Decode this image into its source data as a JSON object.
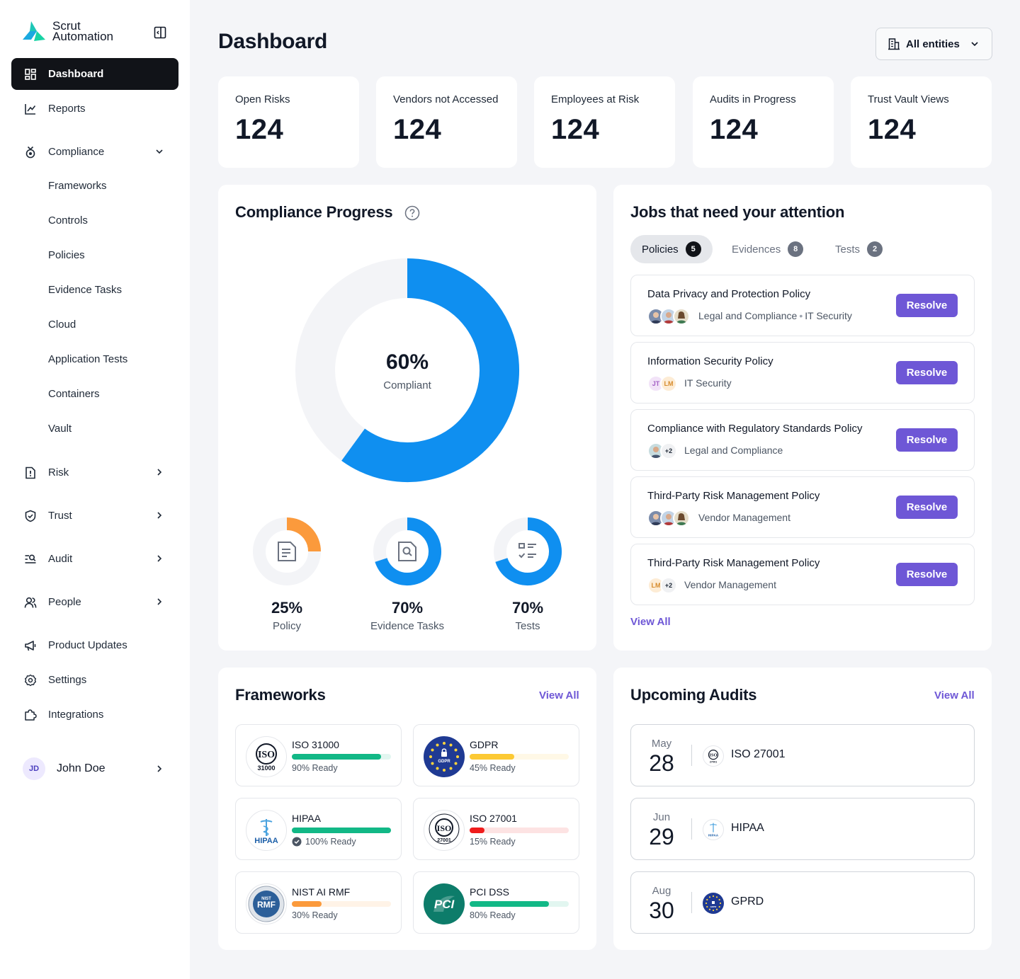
{
  "brand": {
    "line1": "Scrut",
    "line2": "Automation"
  },
  "sidebar": {
    "items": [
      {
        "label": "Dashboard"
      },
      {
        "label": "Reports"
      },
      {
        "label": "Compliance"
      },
      {
        "label": "Risk"
      },
      {
        "label": "Trust"
      },
      {
        "label": "Audit"
      },
      {
        "label": "People"
      },
      {
        "label": "Product Updates"
      },
      {
        "label": "Settings"
      },
      {
        "label": "Integrations"
      }
    ],
    "compliance_sub": [
      "Frameworks",
      "Controls",
      "Policies",
      "Evidence Tasks",
      "Cloud",
      "Application Tests",
      "Containers",
      "Vault"
    ],
    "user": {
      "initials": "JD",
      "name": "John Doe"
    }
  },
  "header": {
    "title": "Dashboard",
    "entities": "All entities"
  },
  "stats": [
    {
      "label": "Open Risks",
      "value": "124"
    },
    {
      "label": "Vendors not Accessed",
      "value": "124"
    },
    {
      "label": "Employees at Risk",
      "value": "124"
    },
    {
      "label": "Audits in Progress",
      "value": "124"
    },
    {
      "label": "Trust Vault Views",
      "value": "124"
    }
  ],
  "compliance": {
    "title": "Compliance Progress",
    "overall": {
      "value": "60%",
      "label": "Compliant",
      "fraction": 0.6
    },
    "breakdown": [
      {
        "value": "25%",
        "label": "Policy",
        "fraction": 0.25,
        "color": "#fb9a3c"
      },
      {
        "value": "70%",
        "label": "Evidence Tasks",
        "fraction": 0.7,
        "color": "#0f8ff0"
      },
      {
        "value": "70%",
        "label": "Tests",
        "fraction": 0.7,
        "color": "#0f8ff0"
      }
    ],
    "accent": "#0f8ff0"
  },
  "jobs": {
    "title": "Jobs that need your attention",
    "tabs": [
      {
        "label": "Policies",
        "count": "5"
      },
      {
        "label": "Evidences",
        "count": "8"
      },
      {
        "label": "Tests",
        "count": "2"
      }
    ],
    "items": [
      {
        "title": "Data Privacy and Protection Policy",
        "tag1": "Legal and Compliance",
        "sep": "•",
        "tag2": "IT Security",
        "button": "Resolve"
      },
      {
        "title": "Information Security Policy",
        "avatar1": "JT",
        "avatar2": "LM",
        "tag1": "IT Security",
        "button": "Resolve"
      },
      {
        "title": "Compliance with Regulatory Standards Policy",
        "more": "+2",
        "tag1": "Legal and Compliance",
        "button": "Resolve"
      },
      {
        "title": "Third-Party Risk Management Policy",
        "tag1": "Vendor Management",
        "button": "Resolve"
      },
      {
        "title": "Third-Party Risk Management Policy",
        "avatar1": "LM",
        "more": "+2",
        "tag1": "Vendor Management",
        "button": "Resolve"
      }
    ],
    "view_all": "View All",
    "resolve_color": "#6e57d6"
  },
  "frameworks": {
    "title": "Frameworks",
    "view_all": "View All",
    "items": [
      {
        "name": "ISO 31000",
        "ready": "90% Ready",
        "progress": 0.9,
        "color": "#12b886",
        "logo_text": "ISO",
        "logo_sub": "31000"
      },
      {
        "name": "GDPR",
        "ready": "45% Ready",
        "progress": 0.45,
        "color": "#fcc933",
        "logo_text": "GDPR"
      },
      {
        "name": "HIPAA",
        "ready": "100% Ready",
        "progress": 1.0,
        "color": "#12b886",
        "logo_text": "HIPAA"
      },
      {
        "name": "ISO 27001",
        "ready": "15% Ready",
        "progress": 0.15,
        "color": "#ef1c1c",
        "logo_text": "ISO",
        "logo_sub": "27001"
      },
      {
        "name": "NIST AI RMF",
        "ready": "30% Ready",
        "progress": 0.3,
        "color": "#fb9a3c",
        "logo_text": "RMF",
        "logo_top": "NIST"
      },
      {
        "name": "PCI DSS",
        "ready": "80% Ready",
        "progress": 0.8,
        "color": "#12b886",
        "logo_text": "PCI"
      }
    ]
  },
  "audits": {
    "title": "Upcoming Audits",
    "view_all": "View All",
    "items": [
      {
        "month": "May",
        "day": "28",
        "name": "ISO 27001",
        "logo_text": "ISO",
        "logo_sub": "27001"
      },
      {
        "month": "Jun",
        "day": "29",
        "name": "HIPAA",
        "logo_text": "HIPAA"
      },
      {
        "month": "Aug",
        "day": "30",
        "name": "GPRD",
        "logo_text": "GDPR"
      }
    ]
  }
}
